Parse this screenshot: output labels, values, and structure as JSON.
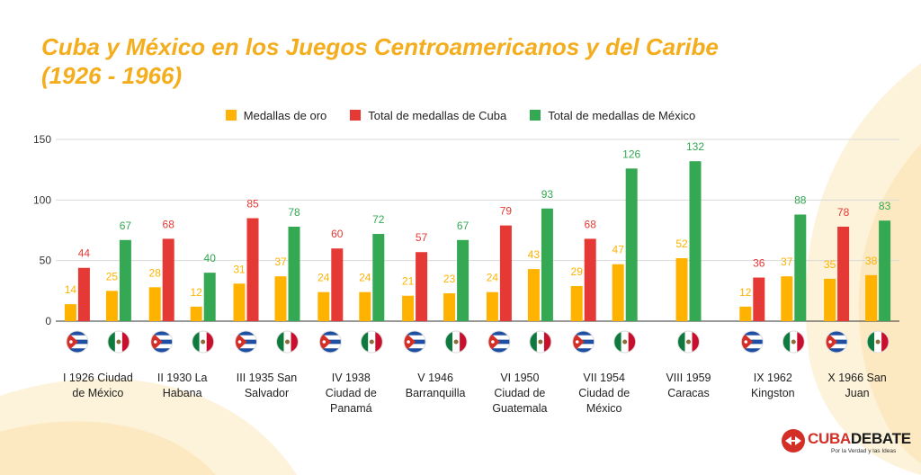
{
  "title_line1": "Cuba y México en los Juegos Centroamericanos y del Caribe",
  "title_line2": "(1926 - 1966)",
  "colors": {
    "gold": "#ffb300",
    "cuba": "#e53935",
    "mexico": "#34a853",
    "title": "#f4ad1d"
  },
  "legend": [
    {
      "label": "Medallas de oro",
      "color": "#ffb300"
    },
    {
      "label": "Total de medallas de Cuba",
      "color": "#e53935"
    },
    {
      "label": "Total de medallas de México",
      "color": "#34a853"
    }
  ],
  "chart_data": {
    "type": "bar",
    "ylim": [
      0,
      150
    ],
    "yticks": [
      "0",
      "50",
      "100",
      "150"
    ],
    "grid": true,
    "legend_position": "top",
    "categories": [
      "I 1926 Ciudad de México",
      "II 1930 La Habana",
      "III 1935 San Salvador",
      "IV 1938 Ciudad de Panamá",
      "V 1946 Barranquilla",
      "VI 1950 Ciudad de Guatemala",
      "VII 1954 Ciudad de México",
      "VIII 1959 Caracas",
      "IX 1962 Kingston",
      "X 1966 San Juan"
    ],
    "category_label_lines": [
      [
        "I 1926 Ciudad",
        "de México"
      ],
      [
        "II 1930 La",
        "Habana"
      ],
      [
        "III 1935 San",
        "Salvador"
      ],
      [
        "IV 1938",
        "Ciudad de",
        "Panamá"
      ],
      [
        "V 1946",
        "Barranquilla"
      ],
      [
        "VI 1950",
        "Ciudad de",
        "Guatemala"
      ],
      [
        "VII 1954",
        "Ciudad de",
        "México"
      ],
      [
        "VIII 1959",
        "Caracas"
      ],
      [
        "IX 1962",
        "Kingston"
      ],
      [
        "X 1966 San",
        "Juan"
      ]
    ],
    "groups": {
      "cuba": {
        "gold": [
          14,
          28,
          31,
          24,
          21,
          24,
          29,
          null,
          12,
          35
        ],
        "total": [
          44,
          68,
          85,
          60,
          57,
          79,
          68,
          null,
          36,
          78
        ]
      },
      "mexico": {
        "gold": [
          25,
          12,
          37,
          24,
          23,
          43,
          47,
          52,
          37,
          38
        ],
        "total": [
          67,
          40,
          78,
          72,
          67,
          93,
          126,
          132,
          88,
          83
        ]
      }
    }
  },
  "logo": {
    "prefix": "CUBA",
    "suffix": "DEBATE",
    "tagline": "Por la Verdad y las Ideas"
  }
}
